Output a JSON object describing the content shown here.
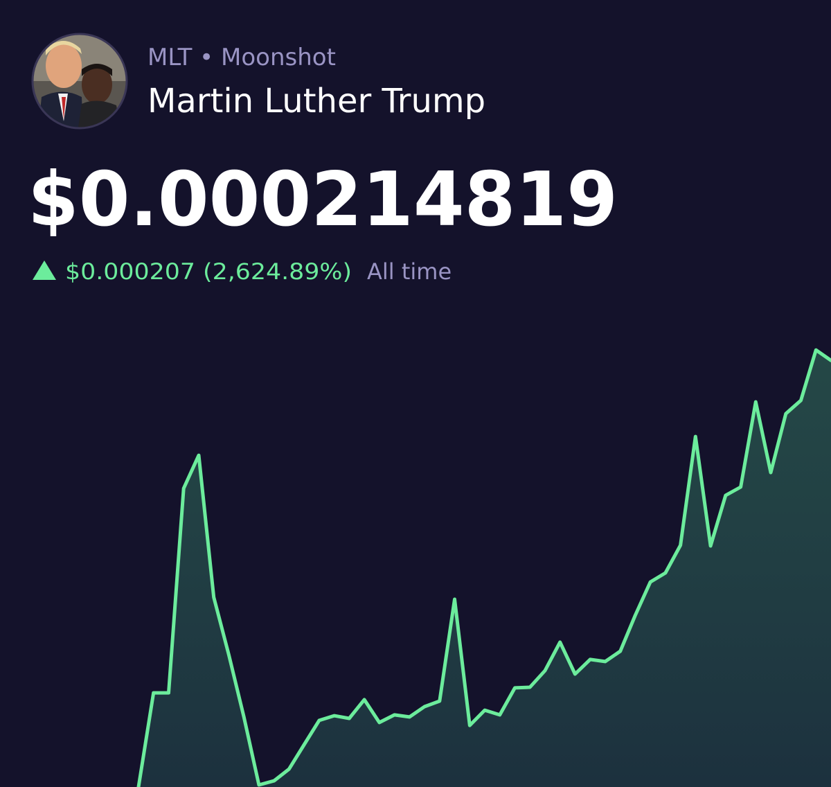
{
  "header": {
    "subtitle": "MLT • Moonshot",
    "name": "Martin Luther Trump"
  },
  "price": "$0.000214819",
  "change": {
    "amount": "$0.000207 (2,624.89%)",
    "period": "All time"
  },
  "chart_data": {
    "type": "line",
    "color": "#6cec9c",
    "ylim": [
      7.8e-06,
      0.000225
    ],
    "values": [
      7.8e-06,
      5.35e-05,
      5.35e-05,
      0.0001527,
      0.0001688,
      9.99e-05,
      7.2e-05,
      4.18e-05,
      8.8e-06,
      1.08e-05,
      1.65e-05,
      2.83e-05,
      4.01e-05,
      4.24e-05,
      4.11e-05,
      5.02e-05,
      3.91e-05,
      4.28e-05,
      4.18e-05,
      4.68e-05,
      4.95e-05,
      9.89e-05,
      3.77e-05,
      4.51e-05,
      4.28e-05,
      5.59e-05,
      5.62e-05,
      6.43e-05,
      7.81e-05,
      6.26e-05,
      6.97e-05,
      6.87e-05,
      7.37e-05,
      9.12e-05,
      0.0001073,
      0.0001117,
      0.0001251,
      0.0001779,
      0.0001248,
      0.0001493,
      0.0001534,
      0.0001947,
      0.0001604,
      0.000189,
      0.0001954,
      0.0002199,
      0.0002148
    ]
  }
}
